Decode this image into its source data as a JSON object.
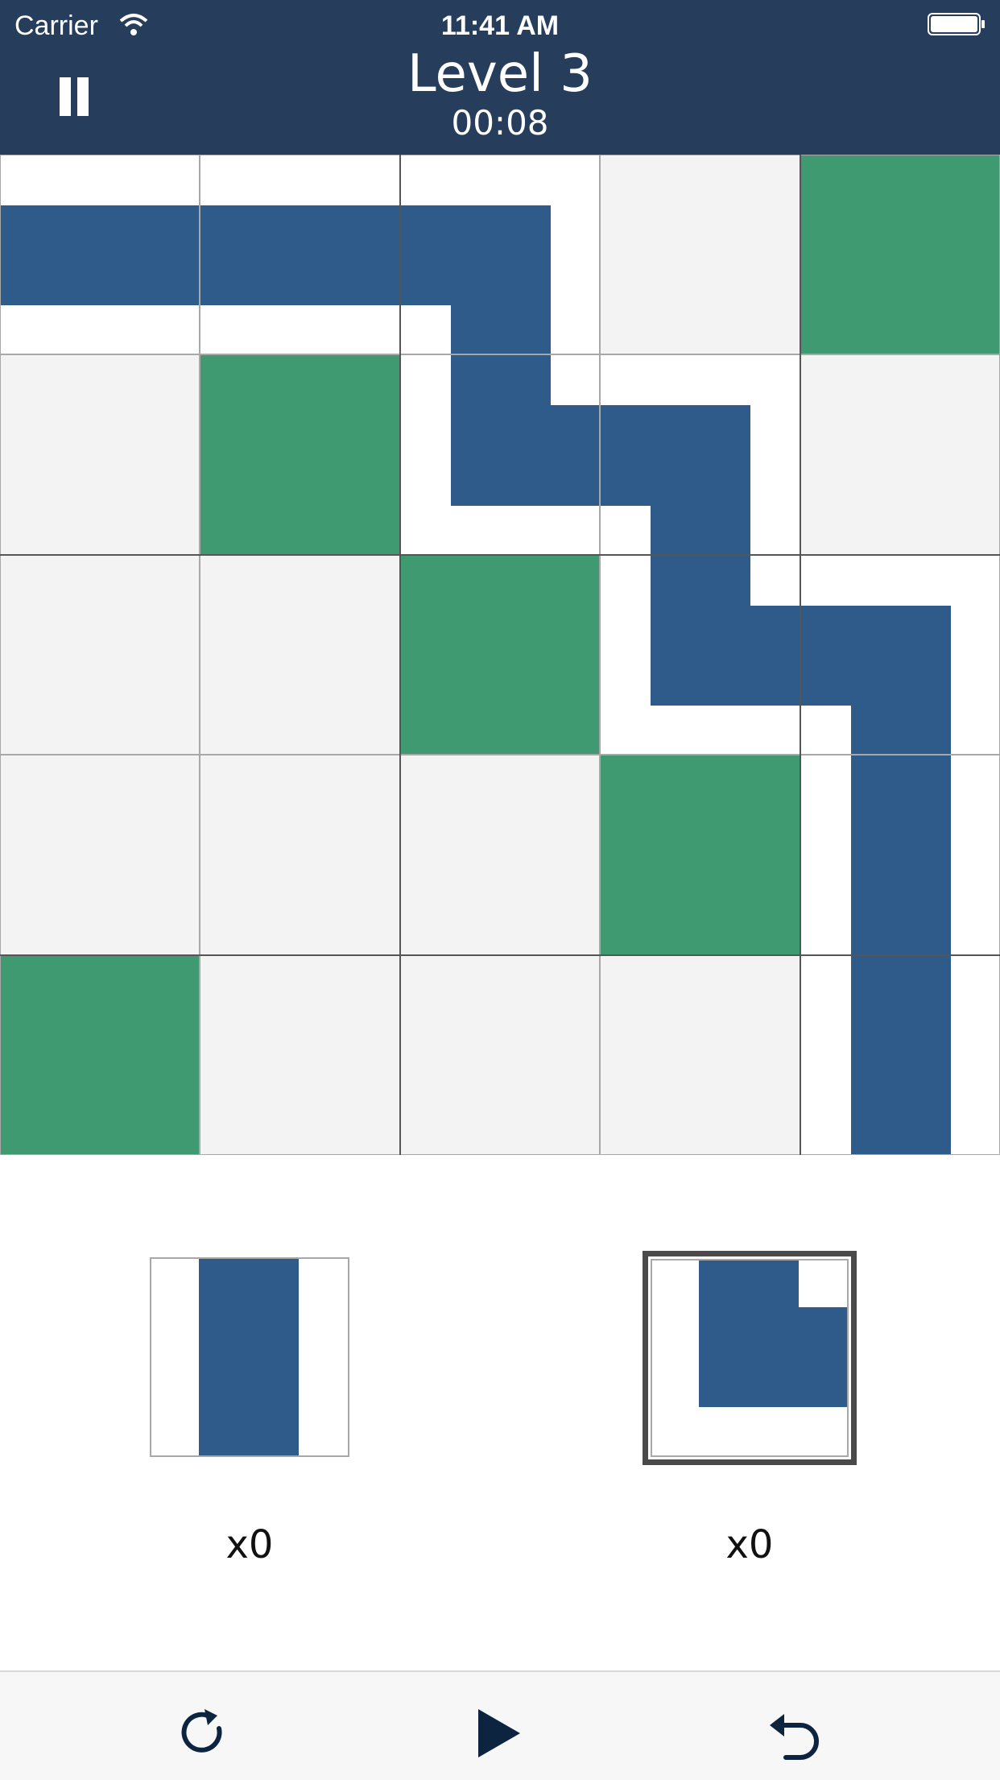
{
  "status_bar": {
    "carrier": "Carrier",
    "time": "11:41 AM",
    "icons": [
      "wifi-icon",
      "battery-icon"
    ]
  },
  "header": {
    "title": "Level 3",
    "timer": "00:08",
    "pause_icon": "pause-icon"
  },
  "board": {
    "size": 5,
    "cells": [
      [
        "pipe-horizontal",
        "pipe-horizontal",
        "pipe-left-down",
        "empty",
        "block"
      ],
      [
        "empty",
        "block",
        "pipe-up-right",
        "pipe-left-down",
        "empty"
      ],
      [
        "empty",
        "empty",
        "block",
        "pipe-up-right",
        "pipe-left-down"
      ],
      [
        "empty",
        "empty",
        "empty",
        "block",
        "pipe-vertical"
      ],
      [
        "block",
        "empty",
        "empty",
        "empty",
        "pipe-vertical"
      ]
    ]
  },
  "pieces": [
    {
      "shape": "pipe-vertical",
      "count": "x0",
      "selected": false
    },
    {
      "shape": "pipe-top-right-corner",
      "count": "x0",
      "selected": true
    }
  ],
  "toolbar": {
    "buttons": [
      "restart-icon",
      "play-icon",
      "undo-icon"
    ]
  },
  "colors": {
    "header": "#263d5c",
    "pipe": "#2f5b8b",
    "block": "#3f9971",
    "empty_cell": "#f3f3f3",
    "toolbar_icon": "#0d2440"
  }
}
